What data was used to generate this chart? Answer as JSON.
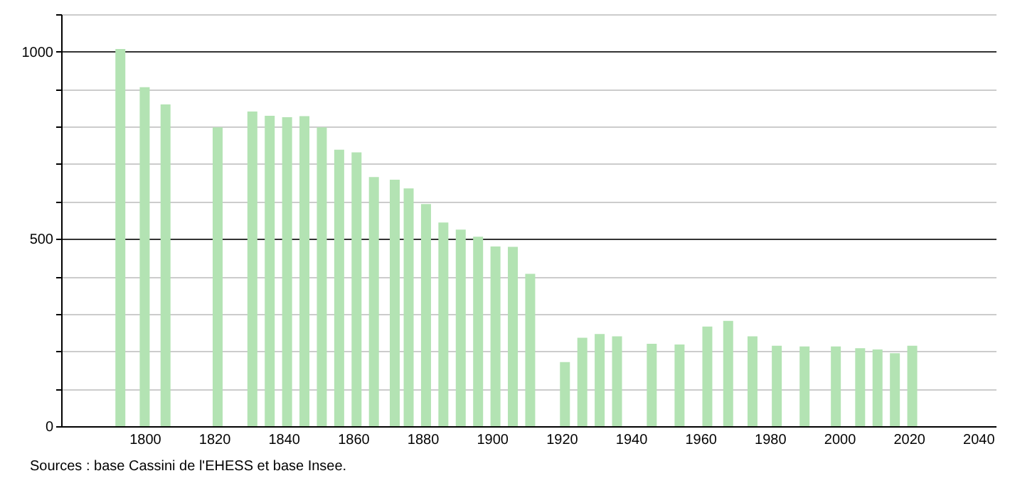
{
  "chart_data": {
    "type": "bar",
    "x": [
      1793,
      1800,
      1806,
      1821,
      1831,
      1836,
      1841,
      1846,
      1851,
      1856,
      1861,
      1866,
      1872,
      1876,
      1881,
      1886,
      1891,
      1896,
      1901,
      1906,
      1911,
      1921,
      1926,
      1931,
      1936,
      1946,
      1954,
      1962,
      1968,
      1975,
      1982,
      1990,
      1999,
      2006,
      2011,
      2016,
      2021
    ],
    "values": [
      1007,
      905,
      859,
      798,
      840,
      829,
      825,
      828,
      798,
      738,
      731,
      665,
      658,
      635,
      593,
      544,
      525,
      506,
      480,
      479,
      407,
      171,
      236,
      246,
      240,
      220,
      218,
      266,
      281,
      240,
      215,
      213,
      213,
      208,
      205,
      195,
      215
    ],
    "color": "#b3e3b3",
    "xlim": [
      1778,
      2043
    ],
    "xticks": [
      1800,
      1820,
      1840,
      1860,
      1880,
      1900,
      1920,
      1940,
      1960,
      1980,
      2000,
      2020,
      2040
    ],
    "ylim": [
      0,
      1100
    ],
    "yticks": [
      0,
      {
        "value": 100,
        "label": null
      },
      {
        "value": 200,
        "label": null
      },
      {
        "value": 300,
        "label": null
      },
      {
        "value": 400,
        "label": null
      },
      500,
      {
        "value": 600,
        "label": null
      },
      {
        "value": 700,
        "label": null
      },
      {
        "value": 800,
        "label": null
      },
      {
        "value": 900,
        "label": null
      },
      1000,
      {
        "value": 1100,
        "label": null
      }
    ],
    "grid": "y",
    "annotations": [
      "Sources : base Cassini de l'EHESS et base Insee."
    ]
  }
}
